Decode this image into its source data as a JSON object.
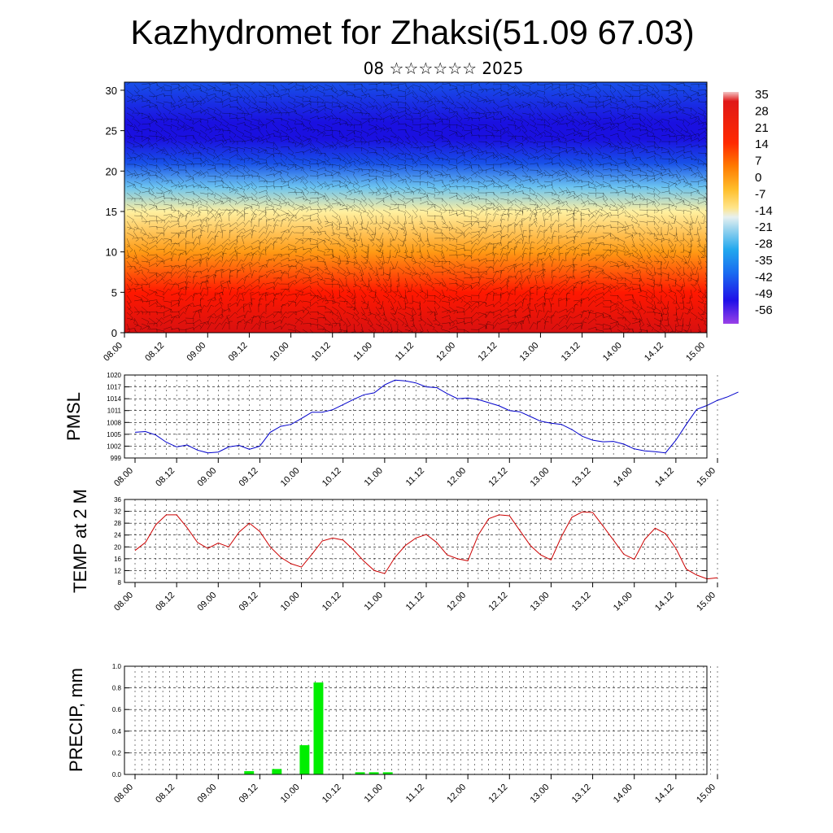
{
  "title": "Kazhydromet for Zhaksi(51.09 67.03)",
  "subtitle": "08 ☆☆☆☆☆☆ 2025",
  "colors": {
    "pmsl_line": "#0000cc",
    "temp_line": "#cc0000",
    "precip_bar": "#00ee00",
    "grid": "#000000"
  },
  "chart_data": [
    {
      "id": "cross_section",
      "type": "heatmap",
      "title": "",
      "xlabel": "",
      "ylabel": "",
      "x_tick_labels": [
        "08.00",
        "08.12",
        "09.00",
        "09.12",
        "10.00",
        "10.12",
        "11.00",
        "11.12",
        "12.00",
        "12.12",
        "13.00",
        "13.12",
        "14.00",
        "14.12",
        "15.00"
      ],
      "y_ticks": [
        0,
        5,
        10,
        15,
        20,
        25,
        30
      ],
      "ylim": [
        0,
        31
      ],
      "colorbar_labels": [
        "35",
        "28",
        "21",
        "14",
        "7",
        "0",
        "-7",
        "-14",
        "-21",
        "-28",
        "-35",
        "-42",
        "-49",
        "-56"
      ],
      "overlay": "wind barbs",
      "temperature_profile": [
        {
          "level": 0,
          "value": 24
        },
        {
          "level": 5,
          "value": 16
        },
        {
          "level": 10,
          "value": 5
        },
        {
          "level": 15,
          "value": -12
        },
        {
          "level": 18,
          "value": -32
        },
        {
          "level": 21,
          "value": -50
        },
        {
          "level": 24,
          "value": -58
        },
        {
          "level": 26,
          "value": -56
        },
        {
          "level": 31,
          "value": -50
        }
      ]
    },
    {
      "id": "pmsl",
      "type": "line",
      "ylabel": "PMSL",
      "ylim": [
        999,
        1020
      ],
      "y_ticks": [
        999,
        1002,
        1005,
        1008,
        1011,
        1014,
        1017,
        1020
      ],
      "x_tick_labels": [
        "08.00",
        "08.12",
        "09.00",
        "09.12",
        "10.00",
        "10.12",
        "11.00",
        "11.12",
        "12.00",
        "12.12",
        "13.00",
        "13.12",
        "14.00",
        "14.12",
        "15.00"
      ],
      "values": [
        1005.5,
        1005.7,
        1004.8,
        1003,
        1001.8,
        1002.3,
        1001,
        1000.3,
        1000.5,
        1001.8,
        1002.2,
        1001.2,
        1002,
        1005.5,
        1007,
        1007.5,
        1009,
        1010.6,
        1010.6,
        1011.2,
        1012.5,
        1013.8,
        1015,
        1015.5,
        1017.5,
        1018.7,
        1018.5,
        1018,
        1017,
        1016.8,
        1015.3,
        1014,
        1014.2,
        1013.8,
        1013,
        1012.2,
        1011,
        1010.7,
        1009.5,
        1008.3,
        1007.8,
        1007.5,
        1006.2,
        1004.5,
        1003.5,
        1003.1,
        1003.2,
        1002.5,
        1001.3,
        1000.8,
        1000.6,
        1000.3,
        1003.5,
        1007.5,
        1011.3,
        1012.3,
        1013.6,
        1014.5,
        1015.7
      ]
    },
    {
      "id": "temp",
      "type": "line",
      "ylabel": "TEMP at 2 M",
      "ylim": [
        8,
        36
      ],
      "y_ticks": [
        8,
        12,
        16,
        20,
        24,
        28,
        32,
        36
      ],
      "x_tick_labels": [
        "08.00",
        "08.12",
        "09.00",
        "09.12",
        "10.00",
        "10.12",
        "11.00",
        "11.12",
        "12.00",
        "12.12",
        "13.00",
        "13.12",
        "14.00",
        "14.12",
        "15.00"
      ],
      "values": [
        18.8,
        21.5,
        27.5,
        30.8,
        30.8,
        26.5,
        21.5,
        19.5,
        21.3,
        20,
        25,
        28,
        25.2,
        20,
        16.5,
        14.3,
        13.2,
        17.5,
        22,
        23,
        22.3,
        19,
        15.2,
        12,
        11,
        16.5,
        20.5,
        23,
        24.2,
        21.5,
        17.3,
        16,
        15.3,
        24,
        29.5,
        30.8,
        30.5,
        25.5,
        20.5,
        17.3,
        15.6,
        23.5,
        30,
        31.8,
        31.6,
        27,
        22.3,
        17.5,
        15.8,
        22.5,
        26.3,
        24.5,
        19.5,
        12.5,
        10.5,
        9.2,
        9.6
      ]
    },
    {
      "id": "precip",
      "type": "bar",
      "ylabel": "PRECIP, mm",
      "ylim": [
        0,
        1.0
      ],
      "y_ticks": [
        0.0,
        0.2,
        0.4,
        0.6,
        0.8,
        1.0
      ],
      "y_tick_labels": [
        "0.0",
        "0.2",
        "0.4",
        "0.6",
        "0.8",
        "1.0"
      ],
      "x_tick_labels": [
        "08.00",
        "08.12",
        "09.00",
        "09.12",
        "10.00",
        "10.12",
        "11.00",
        "11.12",
        "12.00",
        "12.12",
        "13.00",
        "13.12",
        "14.00",
        "14.12",
        "15.00"
      ],
      "bars": [
        {
          "step": 16,
          "value": 0.03
        },
        {
          "step": 20,
          "value": 0.05
        },
        {
          "step": 24,
          "value": 0.27
        },
        {
          "step": 26,
          "value": 0.85
        },
        {
          "step": 32,
          "value": 0.02
        },
        {
          "step": 34,
          "value": 0.02
        },
        {
          "step": 36,
          "value": 0.02
        }
      ],
      "steps_per_label": 6
    }
  ]
}
